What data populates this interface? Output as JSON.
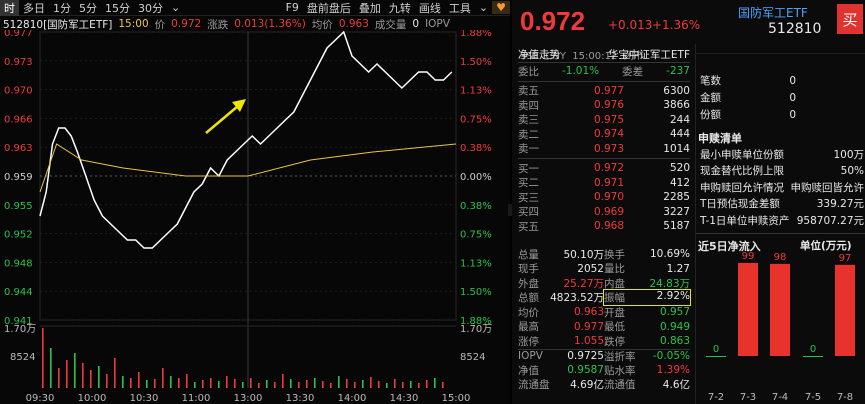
{
  "toolbar": {
    "items": [
      "时",
      "多日",
      "1分",
      "5分",
      "15分",
      "30分"
    ],
    "more": "⌄",
    "right_items": [
      "F9",
      "盘前盘后",
      "叠加",
      "九转",
      "画线",
      "工具"
    ],
    "heart": "♥",
    "chevron": "⌄"
  },
  "infobar": {
    "code_name": "512810[国防军工ETF]",
    "time": "15:00",
    "price_label": "价",
    "price": "0.972",
    "chg_label": "涨跌",
    "chg": "0.013(1.36%)",
    "avg_label": "均价",
    "avg": "0.963",
    "vol_label": "成交量",
    "vol": "0",
    "iopv": "IOPV"
  },
  "chart": {
    "y_left": [
      "0.977",
      "0.973",
      "0.970",
      "0.966",
      "0.963",
      "0.959",
      "0.955",
      "0.952",
      "0.948",
      "0.944",
      "0.941"
    ],
    "y_right": [
      "1.88%",
      "1.50%",
      "1.13%",
      "0.75%",
      "0.38%",
      "0.00%",
      "0.38%",
      "0.75%",
      "1.13%",
      "1.50%",
      "1.88%"
    ],
    "vol_labels": [
      "1.70万",
      "8524"
    ],
    "vol_right": [
      "1.70万",
      "8524"
    ],
    "x_labels": [
      "09:30",
      "10:00",
      "10:30",
      "11:00",
      "13:00",
      "13:30",
      "14:00",
      "14:30",
      "15:00"
    ],
    "colors": {
      "price": "#ffffff",
      "avg": "#e8c547",
      "up": "#f03a3a",
      "down": "#29c34a",
      "arrow": "#f2e600"
    }
  },
  "quote": {
    "price": "0.972",
    "change": "+0.013",
    "pct": "+1.36%",
    "name": "国防军工ETF",
    "code": "512810",
    "buy_btn": "买",
    "meta": "SSE  CNY  15:00:12  闭市",
    "fund_label": "净值走势",
    "fund_name": "华宝中证军工ETF"
  },
  "book": {
    "ratio_label": "委比",
    "ratio": "-1.01%",
    "diff_label": "委差",
    "diff": "-237",
    "asks": [
      {
        "label": "卖五",
        "price": "0.977",
        "vol": "6300"
      },
      {
        "label": "卖四",
        "price": "0.976",
        "vol": "3866"
      },
      {
        "label": "卖三",
        "price": "0.975",
        "vol": "244"
      },
      {
        "label": "卖二",
        "price": "0.974",
        "vol": "444"
      },
      {
        "label": "卖一",
        "price": "0.973",
        "vol": "1014"
      }
    ],
    "bids": [
      {
        "label": "买一",
        "price": "0.972",
        "vol": "520"
      },
      {
        "label": "买二",
        "price": "0.971",
        "vol": "412"
      },
      {
        "label": "买三",
        "price": "0.970",
        "vol": "2285"
      },
      {
        "label": "买四",
        "price": "0.969",
        "vol": "3227"
      },
      {
        "label": "买五",
        "price": "0.968",
        "vol": "5187"
      }
    ]
  },
  "stats": [
    [
      {
        "l": "总量",
        "v": "50.10万",
        "c": "white"
      },
      {
        "l": "换手",
        "v": "10.69%",
        "c": "white"
      }
    ],
    [
      {
        "l": "现手",
        "v": "2052",
        "c": "white"
      },
      {
        "l": "量比",
        "v": "1.27",
        "c": "white"
      }
    ],
    [
      {
        "l": "外盘",
        "v": "25.27万",
        "c": "red"
      },
      {
        "l": "内盘",
        "v": "24.83万",
        "c": "green"
      }
    ],
    [
      {
        "l": "总额",
        "v": "4823.52万",
        "c": "white"
      },
      {
        "l": "振幅",
        "v": "2.92%",
        "c": "white"
      }
    ],
    [
      {
        "l": "均价",
        "v": "0.963",
        "c": "red"
      },
      {
        "l": "开盘",
        "v": "0.957",
        "c": "green"
      }
    ],
    [
      {
        "l": "最高",
        "v": "0.977",
        "c": "red"
      },
      {
        "l": "最低",
        "v": "0.949",
        "c": "green"
      }
    ],
    [
      {
        "l": "涨停",
        "v": "1.055",
        "c": "red"
      },
      {
        "l": "跌停",
        "v": "0.863",
        "c": "green"
      }
    ],
    [
      {
        "l": "IOPV",
        "v": "0.9725",
        "c": "white"
      },
      {
        "l": "溢折率",
        "v": "-0.05%",
        "c": "green"
      }
    ],
    [
      {
        "l": "净值",
        "v": "0.9587",
        "c": "green"
      },
      {
        "l": "贴水率",
        "v": "1.39%",
        "c": "red"
      }
    ],
    [
      {
        "l": "流通盘",
        "v": "4.69亿",
        "c": "white"
      },
      {
        "l": "流通值",
        "v": "4.6亿",
        "c": "white"
      }
    ]
  ],
  "sub": {
    "top_rows": [
      {
        "l": "笔数",
        "v": "0"
      },
      {
        "l": "金额",
        "v": "0"
      },
      {
        "l": "份额",
        "v": "0"
      }
    ],
    "section_title": "申赎清单",
    "section_rows": [
      {
        "l": "最小申赎单位份额",
        "v": "100万"
      },
      {
        "l": "现金替代比例上限",
        "v": "50%"
      },
      {
        "l": "申购赎回允许情况",
        "v": "申购赎回皆允许"
      },
      {
        "l": "T日预估现金差额",
        "v": "339.27元"
      },
      {
        "l": "T-1日单位申赎资产",
        "v": "958707.27元"
      }
    ],
    "flow_title": "近5日净流入",
    "flow_unit": "单位(万元)",
    "flow_dates": [
      "7-2",
      "7-3",
      "7-4",
      "7-5",
      "7-8"
    ],
    "flow_values": [
      0,
      99,
      98,
      0,
      97
    ]
  }
}
